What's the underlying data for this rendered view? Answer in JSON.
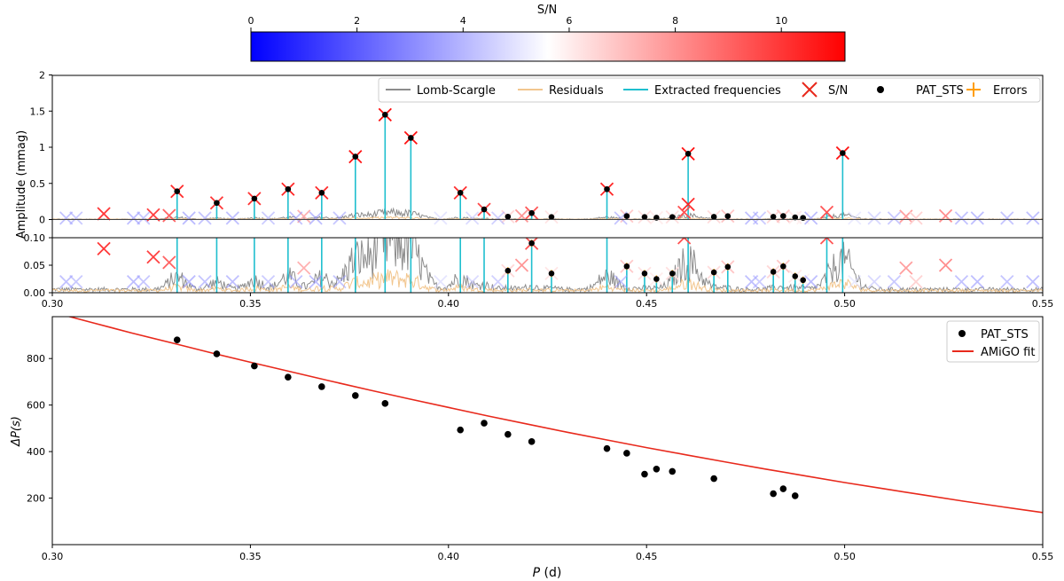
{
  "colorbar": {
    "label": "S/N",
    "ticks": [
      0,
      2,
      4,
      6,
      8,
      10
    ],
    "tick_labels": [
      "0",
      "2",
      "4",
      "6",
      "8",
      "10"
    ],
    "range": [
      0,
      11.2
    ],
    "colors": {
      "low": "#0000ff",
      "mid": "#ffffff",
      "high": "#ff0000"
    }
  },
  "colors": {
    "lomb": "#8c8c8c",
    "residuals": "#f2c68e",
    "extracted": "#1fbfcf",
    "sn_marker": "#e8291c",
    "pat": "#000000",
    "errors": "#ff9d00",
    "fit": "#e8291c"
  },
  "chart_data": [
    {
      "type": "line",
      "panel": "periodogram-top",
      "ylabel": "Amplitude (mmag)",
      "xlim": [
        0.3,
        0.55
      ],
      "ylim": [
        -0.05,
        2.0
      ],
      "yticks": [
        0,
        0.5,
        1,
        1.5,
        2
      ],
      "ytick_labels": [
        "0",
        "0.5",
        "1",
        "1.5",
        "2"
      ],
      "legend": {
        "placement": "top-right",
        "entries": [
          "Lomb-Scargle",
          "Residuals",
          "Extracted frequencies",
          "S/N",
          "PAT_STS",
          "Errors"
        ]
      },
      "extracted_peaks": [
        {
          "P": 0.3315,
          "amp": 0.39,
          "sn": 10.5
        },
        {
          "P": 0.3415,
          "amp": 0.23,
          "sn": 10.2
        },
        {
          "P": 0.351,
          "amp": 0.29,
          "sn": 10.3
        },
        {
          "P": 0.3595,
          "amp": 0.42,
          "sn": 10.6
        },
        {
          "P": 0.368,
          "amp": 0.37,
          "sn": 10.5
        },
        {
          "P": 0.3765,
          "amp": 0.87,
          "sn": 11.0
        },
        {
          "P": 0.384,
          "amp": 1.45,
          "sn": 11.2
        },
        {
          "P": 0.3905,
          "amp": 1.13,
          "sn": 11.1
        },
        {
          "P": 0.403,
          "amp": 0.37,
          "sn": 10.4
        },
        {
          "P": 0.409,
          "amp": 0.14,
          "sn": 9.8
        },
        {
          "P": 0.415,
          "amp": 0.04,
          "sn": 6.5
        },
        {
          "P": 0.421,
          "amp": 0.09,
          "sn": 9.5
        },
        {
          "P": 0.426,
          "amp": 0.035,
          "sn": 6.2
        },
        {
          "P": 0.44,
          "amp": 0.42,
          "sn": 10.6
        },
        {
          "P": 0.445,
          "amp": 0.048,
          "sn": 6.8
        },
        {
          "P": 0.4495,
          "amp": 0.035,
          "sn": 6.3
        },
        {
          "P": 0.4525,
          "amp": 0.025,
          "sn": 6.0
        },
        {
          "P": 0.4565,
          "amp": 0.035,
          "sn": 6.3
        },
        {
          "P": 0.4605,
          "amp": 0.91,
          "sn": 11.1
        },
        {
          "P": 0.467,
          "amp": 0.037,
          "sn": 6.4
        },
        {
          "P": 0.4705,
          "amp": 0.047,
          "sn": 6.9
        },
        {
          "P": 0.482,
          "amp": 0.038,
          "sn": 6.5
        },
        {
          "P": 0.4845,
          "amp": 0.048,
          "sn": 6.9
        },
        {
          "P": 0.4875,
          "amp": 0.03,
          "sn": 6.1
        },
        {
          "P": 0.4895,
          "amp": 0.023,
          "sn": 5.9
        },
        {
          "P": 0.4955,
          "amp": 0.1,
          "sn": 9.5
        },
        {
          "P": 0.4995,
          "amp": 0.92,
          "sn": 11.1
        }
      ],
      "pat_sts": [
        {
          "P": 0.3315,
          "amp": 0.39
        },
        {
          "P": 0.3415,
          "amp": 0.23
        },
        {
          "P": 0.351,
          "amp": 0.29
        },
        {
          "P": 0.3595,
          "amp": 0.42
        },
        {
          "P": 0.368,
          "amp": 0.37
        },
        {
          "P": 0.3765,
          "amp": 0.87
        },
        {
          "P": 0.384,
          "amp": 1.45
        },
        {
          "P": 0.3905,
          "amp": 1.13
        },
        {
          "P": 0.403,
          "amp": 0.37
        },
        {
          "P": 0.409,
          "amp": 0.14
        },
        {
          "P": 0.415,
          "amp": 0.04
        },
        {
          "P": 0.421,
          "amp": 0.09
        },
        {
          "P": 0.426,
          "amp": 0.035
        },
        {
          "P": 0.44,
          "amp": 0.42
        },
        {
          "P": 0.445,
          "amp": 0.048
        },
        {
          "P": 0.4495,
          "amp": 0.035
        },
        {
          "P": 0.4525,
          "amp": 0.025
        },
        {
          "P": 0.4565,
          "amp": 0.035
        },
        {
          "P": 0.4605,
          "amp": 0.91
        },
        {
          "P": 0.467,
          "amp": 0.037
        },
        {
          "P": 0.4705,
          "amp": 0.047
        },
        {
          "P": 0.482,
          "amp": 0.038
        },
        {
          "P": 0.4845,
          "amp": 0.048
        },
        {
          "P": 0.4875,
          "amp": 0.03
        },
        {
          "P": 0.4895,
          "amp": 0.023
        },
        {
          "P": 0.4995,
          "amp": 0.92
        }
      ],
      "extra_sn_markers": [
        {
          "P": 0.313,
          "amp": 0.08,
          "sn": 10.2
        },
        {
          "P": 0.3255,
          "amp": 0.065,
          "sn": 10.0
        },
        {
          "P": 0.3295,
          "amp": 0.055,
          "sn": 9.2
        },
        {
          "P": 0.4605,
          "amp": 0.21,
          "sn": 10.5
        },
        {
          "P": 0.4595,
          "amp": 0.1,
          "sn": 9.6
        },
        {
          "P": 0.4185,
          "amp": 0.05,
          "sn": 8.0
        },
        {
          "P": 0.3635,
          "amp": 0.045,
          "sn": 7.4
        },
        {
          "P": 0.5155,
          "amp": 0.045,
          "sn": 7.8
        },
        {
          "P": 0.5255,
          "amp": 0.05,
          "sn": 8.2
        },
        {
          "P": 0.3035,
          "amp": 0.02,
          "sn": 3.2
        },
        {
          "P": 0.306,
          "amp": 0.02,
          "sn": 3.5
        },
        {
          "P": 0.3205,
          "amp": 0.02,
          "sn": 3.0
        },
        {
          "P": 0.323,
          "amp": 0.02,
          "sn": 3.4
        },
        {
          "P": 0.3345,
          "amp": 0.02,
          "sn": 2.9
        },
        {
          "P": 0.3385,
          "amp": 0.02,
          "sn": 3.3
        },
        {
          "P": 0.3455,
          "amp": 0.02,
          "sn": 3.1
        },
        {
          "P": 0.3545,
          "amp": 0.02,
          "sn": 3.6
        },
        {
          "P": 0.3615,
          "amp": 0.02,
          "sn": 3.2
        },
        {
          "P": 0.3665,
          "amp": 0.02,
          "sn": 3.0
        },
        {
          "P": 0.3725,
          "amp": 0.02,
          "sn": 3.4
        },
        {
          "P": 0.398,
          "amp": 0.02,
          "sn": 4.6
        },
        {
          "P": 0.406,
          "amp": 0.02,
          "sn": 4.2
        },
        {
          "P": 0.4125,
          "amp": 0.02,
          "sn": 3.8
        },
        {
          "P": 0.4435,
          "amp": 0.02,
          "sn": 3.3
        },
        {
          "P": 0.4765,
          "amp": 0.02,
          "sn": 3.1
        },
        {
          "P": 0.4785,
          "amp": 0.02,
          "sn": 3.6
        },
        {
          "P": 0.4915,
          "amp": 0.02,
          "sn": 3.0
        },
        {
          "P": 0.5025,
          "amp": 0.02,
          "sn": 4.8
        },
        {
          "P": 0.5075,
          "amp": 0.02,
          "sn": 4.1
        },
        {
          "P": 0.5125,
          "amp": 0.02,
          "sn": 3.5
        },
        {
          "P": 0.518,
          "amp": 0.02,
          "sn": 6.6
        },
        {
          "P": 0.5295,
          "amp": 0.02,
          "sn": 3.2
        },
        {
          "P": 0.5335,
          "amp": 0.02,
          "sn": 3.0
        },
        {
          "P": 0.541,
          "amp": 0.02,
          "sn": 3.3
        },
        {
          "P": 0.5475,
          "amp": 0.02,
          "sn": 3.1
        }
      ]
    },
    {
      "type": "line",
      "panel": "periodogram-zoom",
      "xlim": [
        0.3,
        0.55
      ],
      "ylim": [
        0,
        0.1
      ],
      "yticks": [
        0,
        0.05,
        0.1
      ],
      "ytick_labels": [
        "0.00",
        "0.05",
        "0.10"
      ],
      "xticks": [
        0.3,
        0.35,
        0.4,
        0.45,
        0.5,
        0.55
      ],
      "xtick_labels": [
        "0.30",
        "0.35",
        "0.40",
        "0.45",
        "0.50",
        "0.55"
      ]
    },
    {
      "type": "scatter",
      "panel": "period-spacing",
      "xlabel_prefix": "P",
      "xlabel_unit": " (d)",
      "ylabel": "ΔP(s)",
      "xlim": [
        0.3,
        0.55
      ],
      "ylim": [
        0,
        980
      ],
      "xticks": [
        0.3,
        0.35,
        0.4,
        0.45,
        0.5,
        0.55
      ],
      "xtick_labels": [
        "0.30",
        "0.35",
        "0.40",
        "0.45",
        "0.50",
        "0.55"
      ],
      "yticks": [
        200,
        400,
        600,
        800
      ],
      "ytick_labels": [
        "200",
        "400",
        "600",
        "800"
      ],
      "legend": {
        "placement": "top-right",
        "entries": [
          "PAT_STS",
          "AMiGO fit"
        ]
      },
      "series": [
        {
          "name": "PAT_STS",
          "points": [
            [
              0.3315,
              880
            ],
            [
              0.3415,
              820
            ],
            [
              0.351,
              768
            ],
            [
              0.3595,
              720
            ],
            [
              0.368,
              679
            ],
            [
              0.3765,
              641
            ],
            [
              0.384,
              607
            ],
            [
              0.403,
              493
            ],
            [
              0.409,
              522
            ],
            [
              0.415,
              474
            ],
            [
              0.421,
              443
            ],
            [
              0.44,
              413
            ],
            [
              0.445,
              393
            ],
            [
              0.4495,
              303
            ],
            [
              0.4525,
              325
            ],
            [
              0.4565,
              315
            ],
            [
              0.467,
              284
            ],
            [
              0.482,
              219
            ],
            [
              0.4845,
              240
            ],
            [
              0.4875,
              210
            ]
          ]
        },
        {
          "name": "AMiGO fit",
          "points": [
            [
              0.3,
              1000
            ],
            [
              0.31,
              955
            ],
            [
              0.32,
              910
            ],
            [
              0.33,
              868
            ],
            [
              0.34,
              825
            ],
            [
              0.35,
              784
            ],
            [
              0.36,
              744
            ],
            [
              0.37,
              704
            ],
            [
              0.38,
              665
            ],
            [
              0.39,
              627
            ],
            [
              0.4,
              590
            ],
            [
              0.41,
              553
            ],
            [
              0.42,
              518
            ],
            [
              0.43,
              483
            ],
            [
              0.44,
              450
            ],
            [
              0.45,
              417
            ],
            [
              0.46,
              386
            ],
            [
              0.47,
              355
            ],
            [
              0.48,
              325
            ],
            [
              0.49,
              296
            ],
            [
              0.5,
              267
            ],
            [
              0.51,
              240
            ],
            [
              0.52,
              213
            ],
            [
              0.53,
              187
            ],
            [
              0.54,
              162
            ],
            [
              0.55,
              138
            ]
          ]
        }
      ]
    }
  ]
}
